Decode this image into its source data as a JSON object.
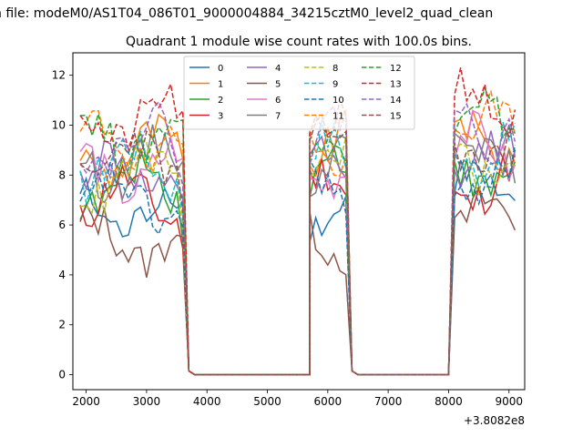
{
  "chart_data": {
    "type": "line",
    "suptitle": "n file: modeM0/AS1T04_086T01_9000004884_34215cztM0_level2_quad_clean",
    "title": "Quadrant 1 module wise count rates with 100.0s bins.",
    "xlabel": "",
    "ylabel": "",
    "x_offset_label": "+3.8082e8",
    "xlim": [
      1780,
      9260
    ],
    "ylim": [
      -0.6,
      12.9
    ],
    "xticks": [
      "2000",
      "3000",
      "4000",
      "5000",
      "6000",
      "7000",
      "8000",
      "9000"
    ],
    "xtick_values": [
      2000,
      3000,
      4000,
      5000,
      6000,
      7000,
      8000,
      9000
    ],
    "yticks": [
      "0",
      "2",
      "4",
      "6",
      "8",
      "10",
      "12"
    ],
    "ytick_values": [
      0,
      2,
      4,
      6,
      8,
      10,
      12
    ],
    "grid": false,
    "legend": {
      "position": "top-center",
      "ncol": 4
    },
    "segments": [
      {
        "start": 1900,
        "end": 3600,
        "bins": 18
      },
      {
        "start": 3700,
        "end": 5700,
        "bins": 21,
        "zero": true
      },
      {
        "start": 5700,
        "end": 6300,
        "bins": 7
      },
      {
        "start": 6400,
        "end": 8000,
        "bins": 17,
        "zero": true
      },
      {
        "start": 8100,
        "end": 9100,
        "bins": 11
      }
    ],
    "series": [
      {
        "name": "0",
        "color": "#1f77b4",
        "dash": false,
        "level": 6.6,
        "seed": 1
      },
      {
        "name": "1",
        "color": "#ff7f0e",
        "dash": false,
        "level": 8.9,
        "seed": 2
      },
      {
        "name": "2",
        "color": "#2ca02c",
        "dash": false,
        "level": 7.6,
        "seed": 3
      },
      {
        "name": "3",
        "color": "#d62728",
        "dash": false,
        "level": 7.0,
        "seed": 4
      },
      {
        "name": "4",
        "color": "#9467bd",
        "dash": false,
        "level": 8.0,
        "seed": 5
      },
      {
        "name": "5",
        "color": "#8c564b",
        "dash": false,
        "level": 5.4,
        "seed": 6
      },
      {
        "name": "6",
        "color": "#e377c2",
        "dash": false,
        "level": 8.2,
        "seed": 7
      },
      {
        "name": "7",
        "color": "#7f7f7f",
        "dash": false,
        "level": 8.5,
        "seed": 8
      },
      {
        "name": "8",
        "color": "#bcbd22",
        "dash": true,
        "level": 7.9,
        "seed": 9
      },
      {
        "name": "9",
        "color": "#17becf",
        "dash": true,
        "level": 8.4,
        "seed": 10
      },
      {
        "name": "10",
        "color": "#1f77b4",
        "dash": true,
        "level": 7.0,
        "seed": 11
      },
      {
        "name": "11",
        "color": "#ff7f0e",
        "dash": true,
        "level": 9.2,
        "seed": 12
      },
      {
        "name": "12",
        "color": "#2ca02c",
        "dash": true,
        "level": 9.6,
        "seed": 13
      },
      {
        "name": "13",
        "color": "#d62728",
        "dash": true,
        "level": 10.2,
        "seed": 14
      },
      {
        "name": "14",
        "color": "#9467bd",
        "dash": true,
        "level": 9.4,
        "seed": 15
      },
      {
        "name": "15",
        "color": "#8c564b",
        "dash": true,
        "level": 8.6,
        "seed": 16
      }
    ]
  }
}
